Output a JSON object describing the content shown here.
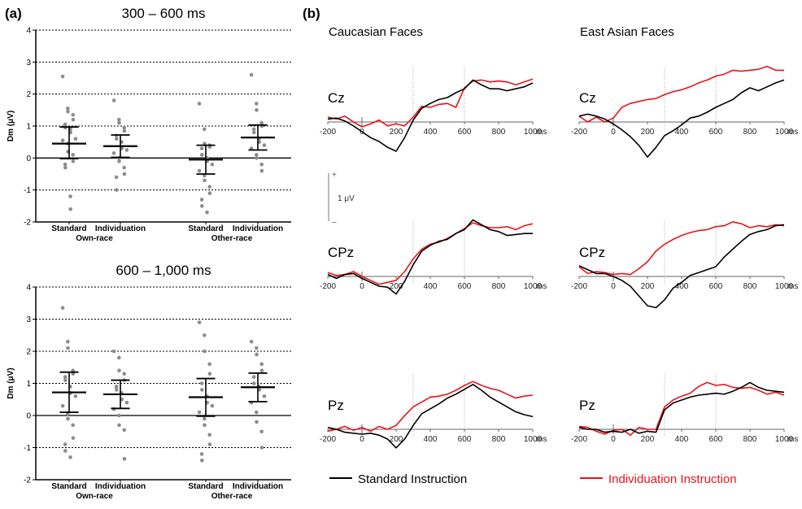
{
  "figure": {
    "panel_a_label": "(a)",
    "panel_b_label": "(b)"
  },
  "legend": {
    "standard": "Standard Instruction",
    "individuation": "Individuation Instruction",
    "standard_color": "#000000",
    "individuation_color": "#e8141b"
  },
  "scale_bar": {
    "plus": "+",
    "minus": "–",
    "label": "1 μV"
  },
  "chart_data": [
    {
      "type": "scatter",
      "id": "dm_300_600",
      "title": "300 – 600 ms",
      "ylabel": "Dm (μV)",
      "ylim": [
        -2,
        4
      ],
      "yticks": [
        -2,
        -1,
        0,
        1,
        2,
        3,
        4
      ],
      "grid": "dashed horizontal",
      "groups": [
        {
          "name": "Own-race",
          "conditions": [
            {
              "name": "Standard",
              "mean": 0.45,
              "ci": [
                -0.02,
                0.97
              ],
              "points": [
                2.55,
                1.55,
                1.45,
                1.35,
                1.2,
                1.05,
                0.95,
                0.9,
                0.8,
                0.6,
                0.55,
                0.45,
                0.2,
                0.1,
                -0.1,
                -0.2,
                -0.3,
                -1.2,
                -1.6
              ]
            },
            {
              "name": "Individuation",
              "mean": 0.37,
              "ci": [
                0.02,
                0.72
              ],
              "points": [
                1.8,
                1.2,
                1.1,
                0.95,
                0.85,
                0.7,
                0.6,
                0.5,
                0.3,
                0.25,
                0.15,
                0.0,
                -0.1,
                -0.3,
                -0.5,
                -0.6,
                -1.0
              ]
            }
          ]
        },
        {
          "name": "Other-race",
          "conditions": [
            {
              "name": "Standard",
              "mean": -0.05,
              "ci": [
                -0.5,
                0.4
              ],
              "points": [
                1.7,
                0.9,
                0.45,
                0.4,
                0.35,
                0.3,
                0.1,
                0.0,
                -0.1,
                -0.2,
                -0.4,
                -0.55,
                -0.7,
                -0.9,
                -1.1,
                -1.3,
                -1.5,
                -1.7
              ]
            },
            {
              "name": "Individuation",
              "mean": 0.64,
              "ci": [
                0.25,
                1.03
              ],
              "points": [
                2.6,
                1.7,
                1.5,
                1.1,
                1.0,
                0.9,
                0.8,
                0.6,
                0.5,
                0.4,
                0.3,
                0.1,
                0.0,
                -0.2,
                -0.4
              ]
            }
          ]
        }
      ]
    },
    {
      "type": "scatter",
      "id": "dm_600_1000",
      "title": "600 – 1,000 ms",
      "ylabel": "Dm (μV)",
      "ylim": [
        -2,
        4
      ],
      "yticks": [
        -2,
        -1,
        0,
        1,
        2,
        3,
        4
      ],
      "grid": "dashed horizontal",
      "groups": [
        {
          "name": "Own-race",
          "conditions": [
            {
              "name": "Standard",
              "mean": 0.72,
              "ci": [
                0.1,
                1.35
              ],
              "points": [
                3.35,
                2.3,
                2.1,
                1.4,
                1.3,
                1.2,
                1.1,
                0.9,
                0.7,
                0.6,
                0.3,
                0.05,
                -0.1,
                -0.3,
                -0.7,
                -0.9,
                -1.1,
                -1.3
              ]
            },
            {
              "name": "Individuation",
              "mean": 0.66,
              "ci": [
                0.22,
                1.1
              ],
              "points": [
                2.0,
                1.8,
                1.4,
                1.3,
                1.1,
                0.9,
                0.8,
                0.7,
                0.5,
                0.4,
                0.2,
                0.0,
                -0.3,
                -0.45,
                -1.35
              ]
            }
          ]
        },
        {
          "name": "Other-race",
          "conditions": [
            {
              "name": "Standard",
              "mean": 0.57,
              "ci": [
                -0.02,
                1.15
              ],
              "points": [
                2.9,
                2.5,
                2.0,
                1.6,
                1.3,
                1.0,
                0.8,
                0.6,
                0.4,
                0.3,
                0.1,
                -0.1,
                -0.3,
                -0.6,
                -0.9,
                -1.2,
                -1.4
              ]
            },
            {
              "name": "Individuation",
              "mean": 0.88,
              "ci": [
                0.43,
                1.32
              ],
              "points": [
                2.3,
                2.1,
                1.9,
                1.6,
                1.4,
                1.2,
                1.0,
                0.9,
                0.8,
                0.6,
                0.4,
                0.1,
                -0.2,
                -0.5,
                -1.0
              ]
            }
          ]
        }
      ]
    },
    {
      "type": "line",
      "id": "erp_grid",
      "xunit": "ms",
      "xticks": [
        -200,
        0,
        200,
        400,
        600,
        800,
        1000
      ],
      "xlim": [
        -200,
        1000
      ],
      "ylim": [
        -4,
        4
      ],
      "time_window_markers": [
        300,
        600
      ],
      "columns": [
        "Caucasian Faces",
        "East Asian Faces"
      ],
      "rows": [
        "Cz",
        "CPz",
        "Pz"
      ],
      "x": [
        -200,
        -150,
        -100,
        -50,
        0,
        50,
        100,
        150,
        200,
        250,
        300,
        350,
        400,
        450,
        500,
        550,
        600,
        650,
        700,
        750,
        800,
        850,
        900,
        950,
        1000
      ],
      "panels": [
        {
          "column": "Caucasian Faces",
          "row": "Cz",
          "standard": [
            0.3,
            0.4,
            0.1,
            -0.4,
            -1.0,
            -1.6,
            -2.0,
            -2.6,
            -3.0,
            -1.6,
            0.2,
            1.4,
            1.9,
            2.3,
            2.5,
            3.0,
            3.4,
            4.3,
            3.8,
            3.4,
            3.4,
            3.2,
            3.4,
            3.6,
            4.0
          ],
          "individuation": [
            0.5,
            0.3,
            0.6,
            0.0,
            -0.5,
            -0.2,
            0.2,
            -0.4,
            -0.2,
            -0.4,
            0.5,
            1.6,
            1.5,
            1.8,
            1.9,
            1.5,
            3.5,
            4.2,
            4.3,
            4.1,
            4.2,
            4.1,
            3.8,
            4.1,
            4.4
          ]
        },
        {
          "column": "East Asian Faces",
          "row": "Cz",
          "standard": [
            0.6,
            0.8,
            0.6,
            0.3,
            -0.2,
            -0.8,
            -1.5,
            -2.4,
            -3.6,
            -2.6,
            -1.4,
            -0.9,
            -0.3,
            0.4,
            0.6,
            1.0,
            1.5,
            1.9,
            2.3,
            3.0,
            3.5,
            3.2,
            3.6,
            4.0,
            4.3
          ],
          "individuation": [
            0.6,
            0.0,
            0.5,
            0.0,
            0.4,
            1.5,
            1.9,
            2.1,
            2.3,
            2.4,
            2.8,
            3.1,
            3.3,
            3.6,
            4.0,
            4.3,
            4.7,
            4.9,
            5.3,
            5.2,
            5.3,
            5.4,
            5.7,
            5.3,
            5.3
          ]
        },
        {
          "column": "Caucasian Faces",
          "row": "CPz",
          "standard": [
            0.2,
            -0.2,
            0.2,
            0.3,
            -0.2,
            -0.6,
            -1.0,
            -1.1,
            -1.8,
            -0.5,
            1.2,
            2.6,
            3.2,
            3.6,
            3.8,
            4.4,
            4.8,
            5.8,
            5.3,
            4.8,
            4.6,
            4.2,
            4.3,
            4.4,
            4.4
          ],
          "individuation": [
            0.4,
            0.1,
            0.2,
            0.5,
            0.0,
            -0.4,
            -0.8,
            -0.6,
            -0.4,
            0.5,
            1.8,
            2.8,
            3.3,
            3.5,
            3.9,
            4.4,
            4.9,
            5.5,
            5.2,
            5.0,
            5.0,
            5.1,
            4.8,
            5.2,
            5.4
          ]
        },
        {
          "column": "East Asian Faces",
          "row": "CPz",
          "standard": [
            1.1,
            0.7,
            0.3,
            0.3,
            0.0,
            -0.4,
            -1.0,
            -2.0,
            -3.0,
            -3.2,
            -2.4,
            -1.2,
            -0.6,
            0.1,
            0.4,
            0.7,
            1.0,
            2.0,
            2.8,
            3.6,
            4.3,
            4.6,
            4.8,
            5.2,
            5.3
          ],
          "individuation": [
            1.0,
            0.3,
            0.5,
            0.4,
            0.2,
            0.3,
            0.2,
            0.8,
            1.5,
            2.6,
            3.3,
            3.8,
            4.2,
            4.5,
            4.7,
            4.8,
            5.1,
            5.2,
            5.6,
            5.4,
            5.0,
            5.2,
            5.1,
            5.3,
            5.2
          ]
        },
        {
          "column": "Caucasian Faces",
          "row": "Pz",
          "standard": [
            0.2,
            0.0,
            -0.3,
            -0.4,
            -0.5,
            -0.4,
            -0.6,
            -1.0,
            -1.9,
            -1.0,
            0.4,
            1.6,
            2.1,
            2.6,
            3.2,
            3.6,
            4.1,
            4.6,
            4.0,
            3.3,
            2.8,
            2.3,
            1.8,
            1.5,
            1.3
          ],
          "individuation": [
            -0.2,
            0.0,
            0.3,
            -0.1,
            0.2,
            -0.2,
            0.3,
            0.0,
            0.4,
            1.4,
            2.3,
            2.8,
            3.3,
            3.4,
            3.6,
            4.0,
            4.5,
            4.9,
            4.5,
            4.2,
            4.0,
            3.6,
            3.2,
            3.4,
            3.5
          ]
        },
        {
          "column": "East Asian Faces",
          "row": "Pz",
          "standard": [
            0.2,
            0.0,
            0.0,
            -0.3,
            -0.2,
            -0.3,
            0.0,
            -0.4,
            -0.2,
            -0.3,
            2.0,
            2.7,
            3.0,
            3.3,
            3.5,
            3.6,
            3.7,
            3.6,
            3.9,
            4.3,
            4.8,
            4.3,
            4.0,
            3.9,
            3.8
          ],
          "individuation": [
            0.3,
            0.2,
            -0.2,
            -0.5,
            -0.1,
            0.0,
            -0.6,
            0.2,
            0.0,
            0.0,
            2.3,
            3.0,
            3.4,
            3.7,
            4.4,
            4.8,
            4.5,
            4.6,
            4.3,
            4.2,
            4.3,
            4.0,
            3.6,
            3.8,
            3.5
          ]
        }
      ]
    }
  ]
}
